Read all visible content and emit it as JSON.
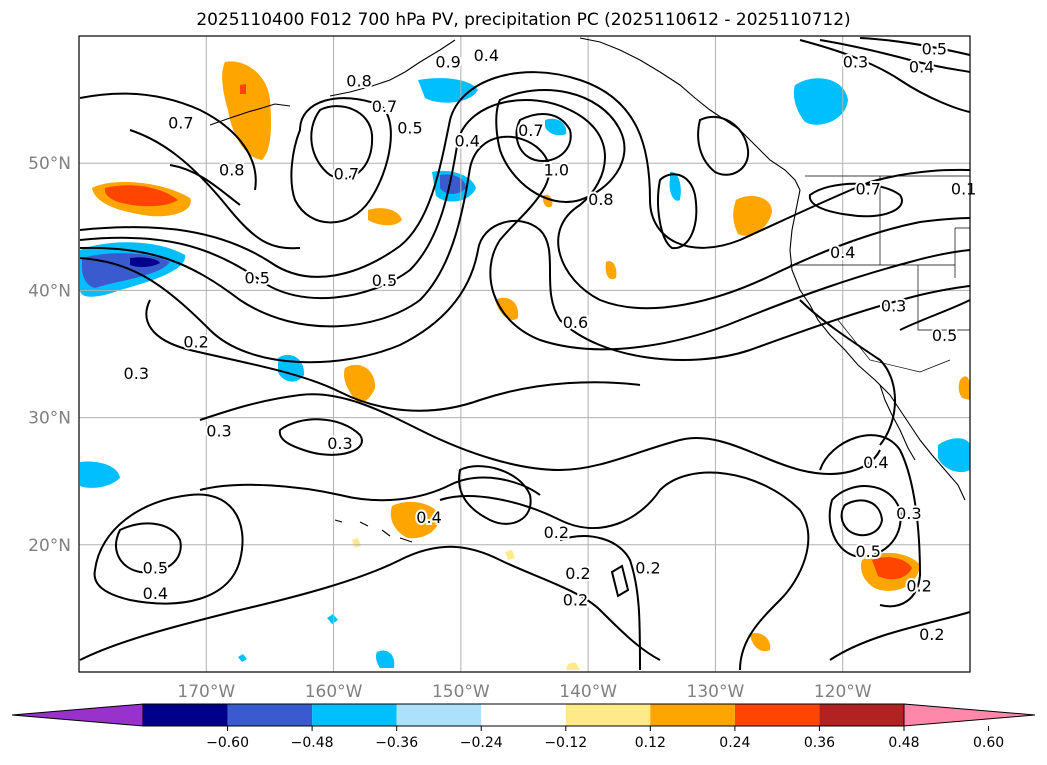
{
  "title": "2025110400 F012 700 hPa PV, precipitation PC (2025110612 - 2025110712)",
  "map": {
    "lon_range": [
      -180,
      -110
    ],
    "lat_range": [
      10,
      60
    ],
    "lat_ticks": [
      {
        "value": 50,
        "label": "50°N"
      },
      {
        "value": 40,
        "label": "40°N"
      },
      {
        "value": 30,
        "label": "30°N"
      },
      {
        "value": 20,
        "label": "20°N"
      }
    ],
    "lon_ticks": [
      {
        "value": -170,
        "label": "170°W"
      },
      {
        "value": -160,
        "label": "160°W"
      },
      {
        "value": -150,
        "label": "150°W"
      },
      {
        "value": -140,
        "label": "140°W"
      },
      {
        "value": -130,
        "label": "130°W"
      },
      {
        "value": -120,
        "label": "120°W"
      }
    ],
    "contour_labels": [
      {
        "text": "0.4",
        "lon": -148.0,
        "lat": 58.5
      },
      {
        "text": "0.8",
        "lon": -158.0,
        "lat": 56.5
      },
      {
        "text": "0.7",
        "lon": -156.0,
        "lat": 54.5
      },
      {
        "text": "0.9",
        "lon": -151.0,
        "lat": 58.0
      },
      {
        "text": "0.5",
        "lon": -154.0,
        "lat": 52.8
      },
      {
        "text": "0.4",
        "lon": -149.5,
        "lat": 51.8
      },
      {
        "text": "0.7",
        "lon": -144.5,
        "lat": 52.6
      },
      {
        "text": "0.7",
        "lon": -172.0,
        "lat": 53.2
      },
      {
        "text": "0.8",
        "lon": -168.0,
        "lat": 49.5
      },
      {
        "text": "0.7",
        "lon": -159.0,
        "lat": 49.2
      },
      {
        "text": "1.0",
        "lon": -142.5,
        "lat": 49.5
      },
      {
        "text": "0.8",
        "lon": -139.0,
        "lat": 47.2
      },
      {
        "text": "0.5",
        "lon": -166.0,
        "lat": 41.0
      },
      {
        "text": "0.5",
        "lon": -156.0,
        "lat": 40.8
      },
      {
        "text": "0.6",
        "lon": -141.0,
        "lat": 37.5
      },
      {
        "text": "0.2",
        "lon": -170.8,
        "lat": 36.0
      },
      {
        "text": "0.3",
        "lon": -175.5,
        "lat": 33.5
      },
      {
        "text": "0.3",
        "lon": -169.0,
        "lat": 29.0
      },
      {
        "text": "0.3",
        "lon": -159.5,
        "lat": 28.0
      },
      {
        "text": "0.4",
        "lon": -152.5,
        "lat": 22.2
      },
      {
        "text": "0.2",
        "lon": -142.5,
        "lat": 21.0
      },
      {
        "text": "0.2",
        "lon": -140.8,
        "lat": 17.8
      },
      {
        "text": "0.2",
        "lon": -141.0,
        "lat": 15.7
      },
      {
        "text": "0.2",
        "lon": -135.3,
        "lat": 18.2
      },
      {
        "text": "0.5",
        "lon": -174.0,
        "lat": 18.2
      },
      {
        "text": "0.4",
        "lon": -174.0,
        "lat": 16.2
      },
      {
        "text": "0.3",
        "lon": -119.0,
        "lat": 58.0
      },
      {
        "text": "0.4",
        "lon": -113.8,
        "lat": 57.6
      },
      {
        "text": "0.5",
        "lon": -112.8,
        "lat": 59.0
      },
      {
        "text": "0.7",
        "lon": -118.0,
        "lat": 48.0
      },
      {
        "text": "0.4",
        "lon": -120.0,
        "lat": 43.0
      },
      {
        "text": "0.3",
        "lon": -116.0,
        "lat": 38.8
      },
      {
        "text": "0.5",
        "lon": -112.0,
        "lat": 36.5
      },
      {
        "text": "0.4",
        "lon": -117.4,
        "lat": 26.5
      },
      {
        "text": "0.3",
        "lon": -114.8,
        "lat": 22.5
      },
      {
        "text": "0.5",
        "lon": -118.0,
        "lat": 19.5
      },
      {
        "text": "0.2",
        "lon": -114.0,
        "lat": 16.8
      },
      {
        "text": "0.2",
        "lon": -113.0,
        "lat": 13.0
      },
      {
        "text": "0.1",
        "lon": -110.5,
        "lat": 48.0
      }
    ]
  },
  "colorbar": {
    "colors": [
      "#9932cc",
      "#00008b",
      "#3a5bcf",
      "#00bfff",
      "#ade0fa",
      "#ffffff",
      "#ffea8a",
      "#ffa500",
      "#ff4500",
      "#b22222",
      "#ff88aa"
    ],
    "tick_labels": [
      "−0.60",
      "−0.48",
      "−0.36",
      "−0.24",
      "−0.12",
      "0.12",
      "0.24",
      "0.36",
      "0.48",
      "0.60"
    ]
  },
  "colors": {
    "grid": "#b0b0b0",
    "contour": "#000000",
    "axis_text": "#808080"
  }
}
